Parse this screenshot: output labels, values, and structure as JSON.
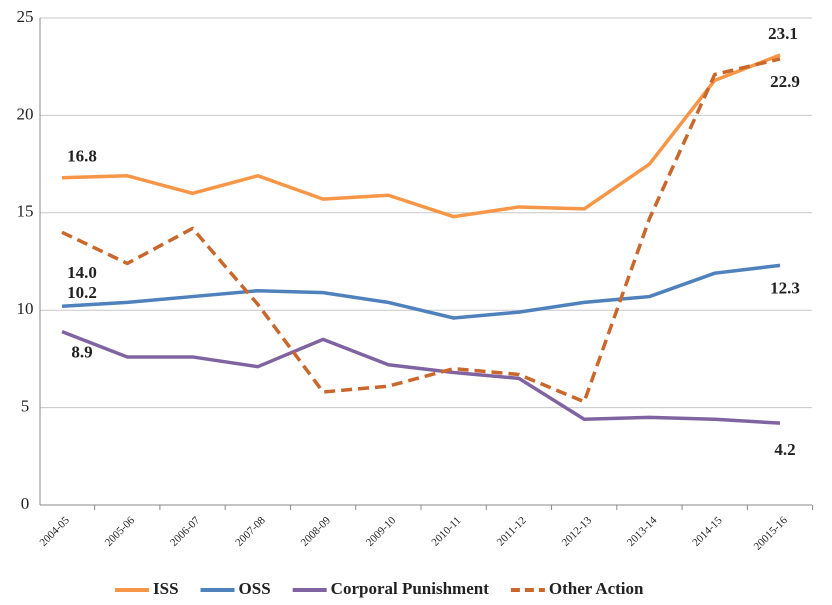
{
  "chart_data": {
    "type": "line",
    "categories": [
      "2004-05",
      "2005-06",
      "2006-07",
      "2007-08",
      "2008-09",
      "2009-10",
      "2010-11",
      "2011-12",
      "2012-13",
      "2013-14",
      "2014-15",
      "20015-16"
    ],
    "series": [
      {
        "name": "ISS",
        "color": "#f79646",
        "dash": false,
        "values": [
          16.8,
          16.9,
          16.0,
          16.9,
          15.7,
          15.9,
          14.8,
          15.3,
          15.2,
          17.5,
          21.8,
          23.1
        ],
        "value_labels": [
          "16.8",
          null,
          null,
          null,
          null,
          null,
          null,
          null,
          null,
          null,
          null,
          "23.1"
        ]
      },
      {
        "name": "OSS",
        "color": "#4f81bd",
        "dash": false,
        "values": [
          10.2,
          10.4,
          10.7,
          11.0,
          10.9,
          10.4,
          9.6,
          9.9,
          10.4,
          10.7,
          11.9,
          12.3
        ],
        "value_labels": [
          "10.2",
          null,
          null,
          null,
          null,
          null,
          null,
          null,
          null,
          null,
          null,
          "12.3"
        ]
      },
      {
        "name": "Corporal Punishment",
        "color": "#8064a2",
        "dash": false,
        "values": [
          8.9,
          7.6,
          7.6,
          7.1,
          8.5,
          7.2,
          6.8,
          6.5,
          4.4,
          4.5,
          4.4,
          4.2
        ],
        "value_labels": [
          "8.9",
          null,
          null,
          null,
          null,
          null,
          null,
          null,
          null,
          null,
          null,
          "4.2"
        ]
      },
      {
        "name": "Other Action",
        "color": "#c9672c",
        "dash": true,
        "values": [
          14.0,
          12.4,
          14.2,
          10.3,
          5.8,
          6.1,
          7.0,
          6.7,
          5.3,
          14.7,
          22.1,
          22.9
        ],
        "value_labels": [
          "14.0",
          null,
          null,
          null,
          null,
          null,
          null,
          null,
          null,
          null,
          null,
          "22.9"
        ]
      }
    ],
    "ylim": [
      0,
      25
    ],
    "yticks": [
      0,
      5,
      10,
      15,
      20,
      25
    ],
    "grid": true,
    "legend": "bottom"
  }
}
